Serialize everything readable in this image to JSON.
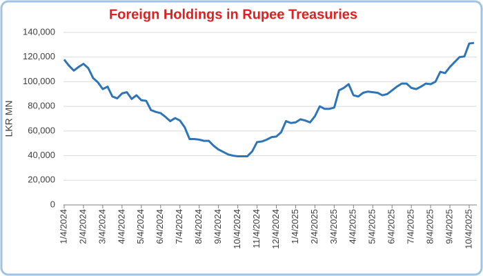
{
  "chart_data": {
    "type": "line",
    "title": "Foreign Holdings in Rupee Treasuries",
    "y_label": "LKR MN",
    "categories": [
      "1/4/2024",
      null,
      null,
      null,
      "2/4/2024",
      null,
      null,
      null,
      "3/4/2024",
      null,
      null,
      null,
      "4/4/2024",
      null,
      null,
      null,
      "5/4/2024",
      null,
      null,
      null,
      "6/4/2024",
      null,
      null,
      null,
      "7/4/2024",
      null,
      null,
      null,
      "8/4/2024",
      null,
      null,
      null,
      "9/4/2024",
      null,
      null,
      null,
      "10/4/2024",
      null,
      null,
      null,
      "11/4/2024",
      null,
      null,
      null,
      "12/4/2024",
      null,
      null,
      null,
      "1/4/2025",
      null,
      null,
      null,
      "2/4/2025",
      null,
      null,
      null,
      "3/4/2025",
      null,
      null,
      null,
      "4/4/2025",
      null,
      null,
      null,
      "5/4/2025",
      null,
      null,
      null,
      "6/4/2025",
      null,
      null,
      null,
      "7/4/2025",
      null,
      null,
      null,
      "8/4/2025",
      null,
      null,
      null,
      "9/4/2025",
      null,
      null,
      null,
      "10/4/2025",
      null
    ],
    "series": [
      {
        "name": "Foreign Holdings",
        "color": "#2e75b6",
        "values": [
          118000,
          113000,
          109000,
          112000,
          114500,
          111000,
          103000,
          99500,
          94000,
          96000,
          88000,
          86500,
          90500,
          91500,
          86000,
          89000,
          85000,
          84500,
          77000,
          75500,
          74500,
          71500,
          68000,
          70500,
          68500,
          63000,
          53500,
          53500,
          53000,
          52000,
          52000,
          48000,
          45000,
          43000,
          41000,
          40000,
          39500,
          39500,
          39500,
          43500,
          51000,
          51500,
          53000,
          55000,
          55500,
          59000,
          68000,
          66500,
          67000,
          69500,
          68500,
          67000,
          72000,
          80000,
          78000,
          78000,
          79000,
          93000,
          95000,
          98000,
          89000,
          88000,
          91000,
          92000,
          91500,
          91000,
          89000,
          90000,
          93000,
          96000,
          98500,
          98500,
          95000,
          94000,
          96000,
          98500,
          98000,
          100000,
          108000,
          107000,
          112000,
          116000,
          120000,
          120500,
          131000,
          131500
        ]
      }
    ],
    "ylim": [
      0,
      140000
    ],
    "yticks": [
      0,
      {
        "value": 20000,
        "label": "20,000"
      },
      {
        "value": 40000,
        "label": "40,000"
      },
      {
        "value": 60000,
        "label": "60,000"
      },
      {
        "value": 80000,
        "label": "80,000"
      },
      {
        "value": 100000,
        "label": "100,000"
      },
      {
        "value": 120000,
        "label": "120,000"
      },
      {
        "value": 140000,
        "label": "140,000"
      }
    ],
    "grid": true
  }
}
